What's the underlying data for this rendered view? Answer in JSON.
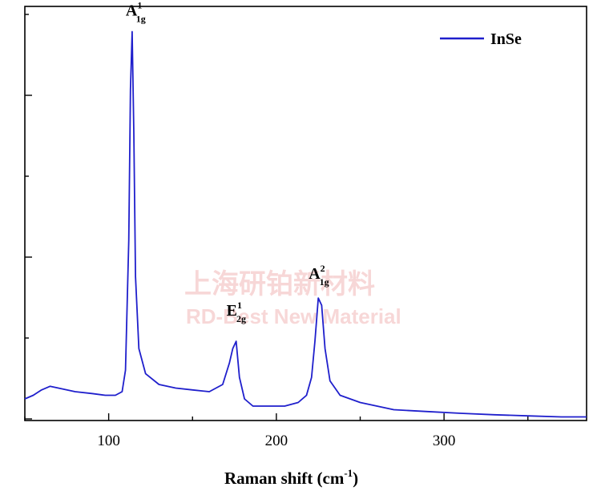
{
  "chart_data": {
    "type": "line",
    "xlabel": "Raman shift (cm",
    "xlabel_sup": "-1",
    "xlabel_close": ")",
    "ylabel": "",
    "xlim": [
      50,
      385
    ],
    "ylim": [
      0,
      1.15
    ],
    "x_ticks": [
      100,
      200,
      300
    ],
    "y_tick_labels_shown": false,
    "legend_position": "top-right",
    "series": [
      {
        "name": "InSe",
        "color": "#1f1fcc",
        "x": [
          50,
          55,
          60,
          65,
          70,
          80,
          90,
          98,
          104,
          108,
          110,
          112,
          113,
          114,
          115,
          116,
          118,
          122,
          130,
          140,
          150,
          160,
          168,
          172,
          174,
          176,
          178,
          181,
          186,
          195,
          205,
          213,
          218,
          221,
          223,
          225,
          227,
          229,
          232,
          238,
          250,
          270,
          290,
          310,
          330,
          350,
          370,
          385
        ],
        "values": [
          0.06,
          0.07,
          0.085,
          0.095,
          0.09,
          0.08,
          0.075,
          0.07,
          0.07,
          0.08,
          0.14,
          0.5,
          0.92,
          1.08,
          0.8,
          0.4,
          0.2,
          0.13,
          0.1,
          0.09,
          0.085,
          0.08,
          0.1,
          0.16,
          0.2,
          0.22,
          0.12,
          0.06,
          0.04,
          0.04,
          0.04,
          0.05,
          0.07,
          0.12,
          0.22,
          0.34,
          0.32,
          0.2,
          0.11,
          0.07,
          0.05,
          0.03,
          0.025,
          0.02,
          0.016,
          0.013,
          0.01,
          0.01
        ]
      }
    ],
    "peaks": [
      {
        "label": "A",
        "sup": "1",
        "sub": "1g",
        "x": 114,
        "y": 1.08
      },
      {
        "label": "E",
        "sup": "1",
        "sub": "2g",
        "x": 176,
        "y": 0.22
      },
      {
        "label": "A",
        "sup": "2",
        "sub": "1g",
        "x": 225,
        "y": 0.34
      }
    ]
  },
  "watermark": {
    "line1": "上海研铂新材料",
    "line2": "RD-Best New Material"
  }
}
